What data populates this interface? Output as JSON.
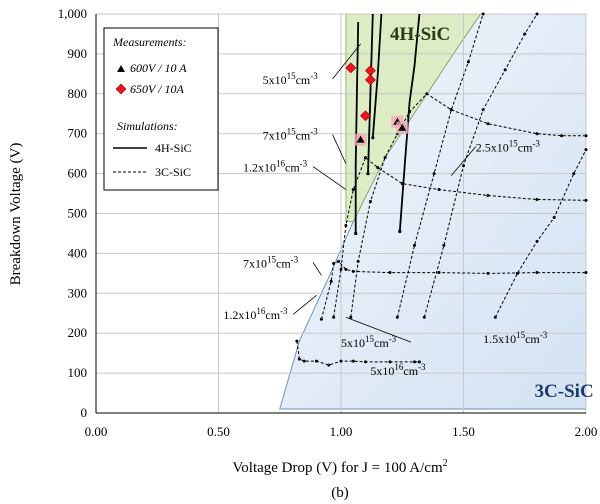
{
  "chart_data": {
    "type": "line",
    "xlabel": "Voltage Drop (V) for J = 100 A/cm",
    "xlabel_sup": "2",
    "ylabel": "Breakdown Voltage (V)",
    "caption": "(b)",
    "xlim": [
      0,
      2
    ],
    "ylim": [
      0,
      1000
    ],
    "x_ticks": [
      "0.00",
      "0.50",
      "1.00",
      "1.50",
      "2.00"
    ],
    "y_ticks": [
      "0",
      "100",
      "200",
      "300",
      "400",
      "500",
      "600",
      "700",
      "800",
      "900",
      "1,000"
    ],
    "grid": true,
    "regions": [
      {
        "label": "4H-SiC",
        "color": "#dcecc4",
        "polygon": [
          [
            1.05,
            480
          ],
          [
            1.18,
            640
          ],
          [
            1.33,
            780
          ],
          [
            1.48,
            920
          ],
          [
            1.57,
            1000
          ],
          [
            1.02,
            1000
          ],
          [
            1.02,
            480
          ]
        ]
      },
      {
        "label": "3C-SiC",
        "color": "#d3e2f3",
        "polygon": [
          [
            0.75,
            10
          ],
          [
            0.83,
            180
          ],
          [
            0.95,
            340
          ],
          [
            1.05,
            480
          ],
          [
            1.18,
            640
          ],
          [
            1.33,
            780
          ],
          [
            1.48,
            920
          ],
          [
            1.57,
            1000
          ],
          [
            2.0,
            1000
          ],
          [
            2.0,
            10
          ]
        ]
      }
    ],
    "legend": {
      "measurements_title": "Measurements:",
      "measurement_1": "600V / 10 A",
      "measurement_2": "650V / 10A",
      "simulations_title": "Simulations:",
      "sim_solid": "4H-SiC",
      "sim_dashed": "3C-SiC"
    },
    "annotations": [
      {
        "text": "5x10",
        "sup": "15",
        "unit": "cm",
        "sup2": "-3",
        "x": 0.68,
        "y": 825,
        "ax": 1.08,
        "ay": 925
      },
      {
        "text": "7x10",
        "sup": "15",
        "unit": "cm",
        "sup2": "-3",
        "x": 0.68,
        "y": 685,
        "ax": 1.02,
        "ay": 625
      },
      {
        "text": "1.2x10",
        "sup": "16",
        "unit": "cm",
        "sup2": "-3",
        "x": 0.6,
        "y": 605,
        "ax": 1.02,
        "ay": 560
      },
      {
        "text": "2.5x10",
        "sup": "15",
        "unit": "cm",
        "sup2": "-3",
        "x": 1.55,
        "y": 655,
        "ax": 1.45,
        "ay": 595
      },
      {
        "text": "7x10",
        "sup": "15",
        "unit": "cm",
        "sup2": "-3",
        "x": 0.6,
        "y": 365,
        "ax": 0.92,
        "ay": 345
      },
      {
        "text": "1.2x10",
        "sup": "16",
        "unit": "cm",
        "sup2": "-3",
        "x": 0.52,
        "y": 235,
        "ax": 0.9,
        "ay": 295
      },
      {
        "text": "5x10",
        "sup": "15",
        "unit": "cm",
        "sup2": "-3",
        "x": 1.0,
        "y": 165,
        "ax": 1.02,
        "ay": 240
      },
      {
        "text": "5x10",
        "sup": "16",
        "unit": "cm",
        "sup2": "-3",
        "x": 1.12,
        "y": 95,
        "ax": null,
        "ay": null
      },
      {
        "text": "1.5x10",
        "sup": "15",
        "unit": "cm",
        "sup2": "-3",
        "x": 1.58,
        "y": 175,
        "ax": null,
        "ay": null
      }
    ],
    "series_4h": [
      {
        "points": [
          [
            1.06,
            450
          ],
          [
            1.06,
            620
          ],
          [
            1.065,
            800
          ],
          [
            1.07,
            980
          ]
        ]
      },
      {
        "points": [
          [
            1.11,
            600
          ],
          [
            1.12,
            800
          ],
          [
            1.13,
            1000
          ]
        ]
      },
      {
        "points": [
          [
            1.13,
            690
          ],
          [
            1.15,
            850
          ],
          [
            1.165,
            1000
          ]
        ]
      },
      {
        "points": [
          [
            1.24,
            455
          ],
          [
            1.26,
            620
          ],
          [
            1.28,
            780
          ],
          [
            1.3,
            870
          ],
          [
            1.32,
            1000
          ]
        ]
      }
    ],
    "series_3c": [
      {
        "points": [
          [
            0.82,
            180
          ],
          [
            0.83,
            135
          ],
          [
            0.85,
            130
          ],
          [
            0.9,
            130
          ],
          [
            0.95,
            120
          ],
          [
            1.0,
            130
          ],
          [
            1.05,
            130
          ],
          [
            1.1,
            128
          ],
          [
            1.2,
            128
          ],
          [
            1.3,
            128
          ],
          [
            1.32,
            128
          ]
        ]
      },
      {
        "points": [
          [
            0.92,
            235
          ],
          [
            0.96,
            330
          ],
          [
            0.97,
            375
          ],
          [
            0.99,
            380
          ],
          [
            1.02,
            360
          ],
          [
            1.05,
            355
          ],
          [
            1.2,
            352
          ],
          [
            1.4,
            352
          ],
          [
            1.6,
            350
          ],
          [
            1.8,
            352
          ],
          [
            2.0,
            352
          ]
        ]
      },
      {
        "points": [
          [
            0.97,
            240
          ],
          [
            1.0,
            360
          ],
          [
            1.02,
            470
          ],
          [
            1.05,
            560
          ],
          [
            1.1,
            640
          ],
          [
            1.15,
            615
          ],
          [
            1.25,
            575
          ],
          [
            1.4,
            560
          ],
          [
            1.6,
            545
          ],
          [
            1.8,
            535
          ],
          [
            2.0,
            533
          ]
        ]
      },
      {
        "points": [
          [
            1.04,
            240
          ],
          [
            1.07,
            380
          ],
          [
            1.12,
            530
          ],
          [
            1.18,
            640
          ],
          [
            1.23,
            700
          ],
          [
            1.28,
            755
          ],
          [
            1.35,
            800
          ],
          [
            1.45,
            760
          ],
          [
            1.6,
            725
          ],
          [
            1.8,
            700
          ],
          [
            1.9,
            695
          ],
          [
            2.0,
            695
          ]
        ]
      },
      {
        "points": [
          [
            1.23,
            240
          ],
          [
            1.3,
            420
          ],
          [
            1.38,
            600
          ],
          [
            1.45,
            760
          ],
          [
            1.52,
            880
          ],
          [
            1.58,
            1000
          ]
        ]
      },
      {
        "points": [
          [
            1.34,
            240
          ],
          [
            1.42,
            420
          ],
          [
            1.5,
            620
          ],
          [
            1.58,
            760
          ],
          [
            1.67,
            860
          ],
          [
            1.75,
            950
          ],
          [
            1.8,
            1000
          ]
        ]
      },
      {
        "points": [
          [
            1.63,
            240
          ],
          [
            1.72,
            350
          ],
          [
            1.8,
            430
          ],
          [
            1.87,
            490
          ],
          [
            1.95,
            600
          ],
          [
            2.0,
            660
          ]
        ]
      }
    ],
    "measurements_600": [
      [
        1.08,
        685
      ],
      [
        1.23,
        730
      ],
      [
        1.25,
        715
      ]
    ],
    "measurements_650": [
      [
        1.04,
        865
      ],
      [
        1.1,
        745
      ],
      [
        1.12,
        858
      ],
      [
        1.12,
        835
      ]
    ]
  }
}
